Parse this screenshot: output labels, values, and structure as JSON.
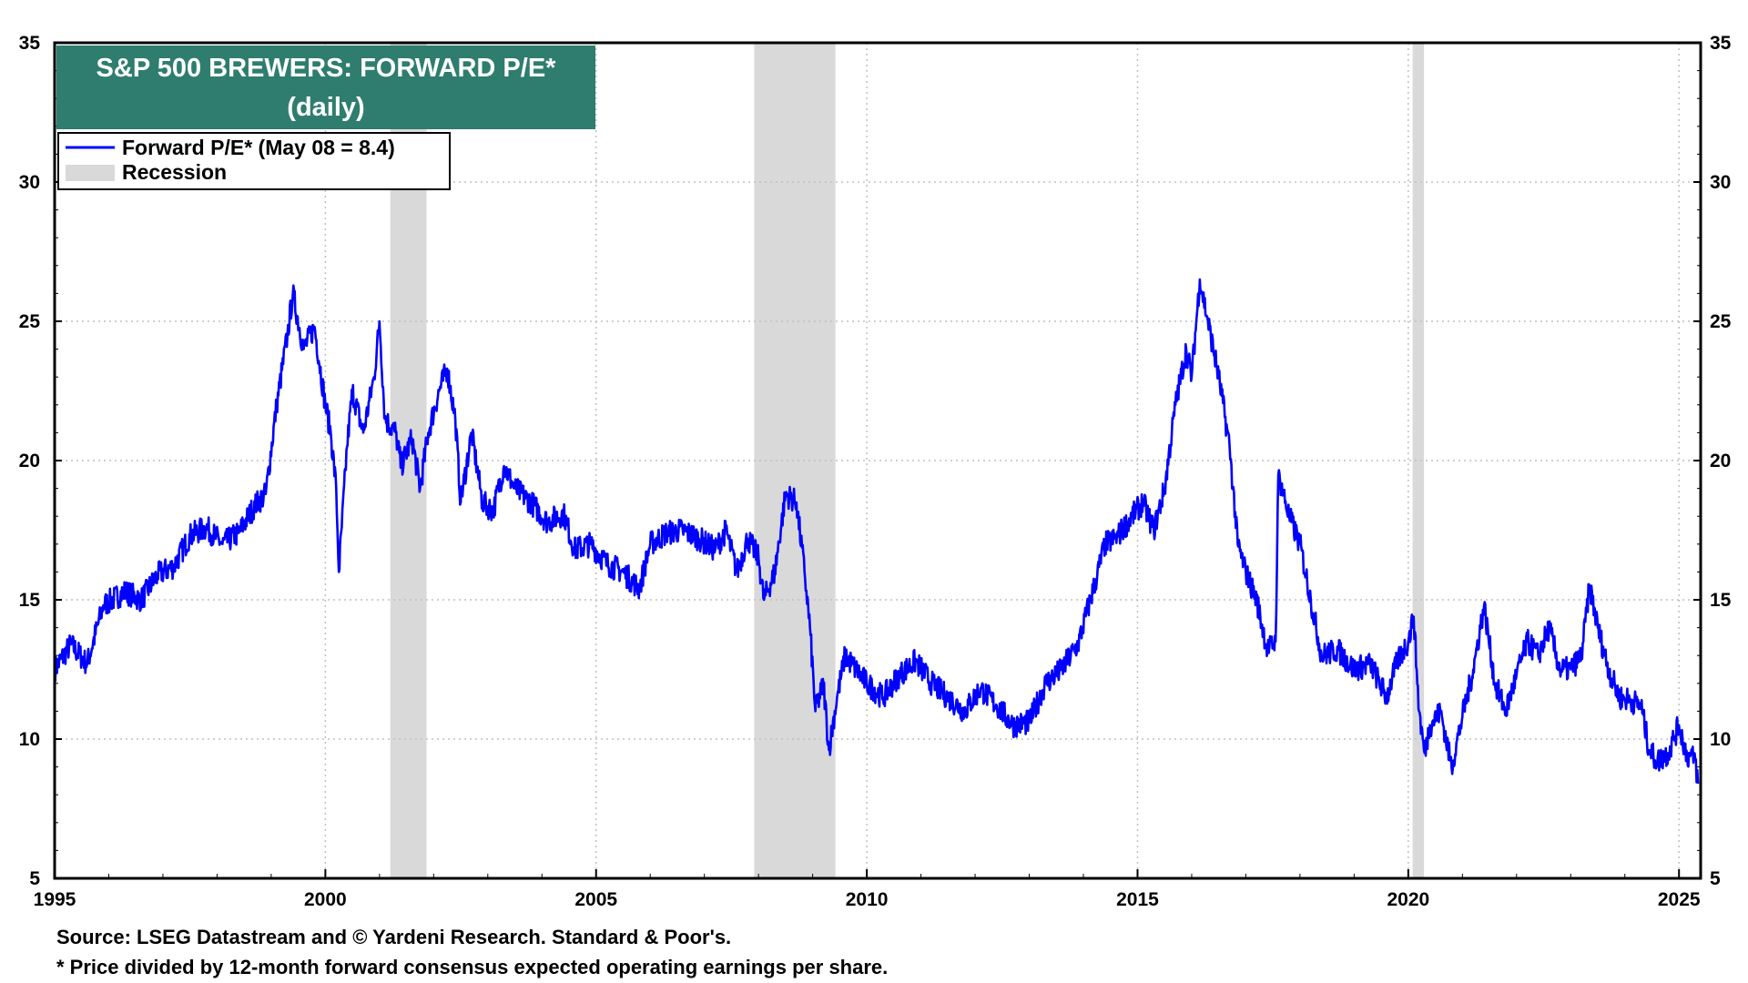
{
  "chart_data": {
    "type": "line",
    "title": "S&P 500 BREWERS: FORWARD P/E*",
    "subtitle": "(daily)",
    "xlim": [
      1995,
      2025.4
    ],
    "ylim": [
      5,
      35
    ],
    "x_ticks": [
      1995,
      2000,
      2005,
      2010,
      2015,
      2020,
      2025
    ],
    "y_ticks": [
      5,
      10,
      15,
      20,
      25,
      30,
      35
    ],
    "grid": true,
    "legend_position": "top-left",
    "legend": {
      "series_label": "Forward P/E* (May 08 = 8.4)",
      "recession_label": "Recession"
    },
    "recessions": [
      {
        "start": 2001.2,
        "end": 2001.87
      },
      {
        "start": 2007.92,
        "end": 2009.42
      },
      {
        "start": 2020.08,
        "end": 2020.29
      }
    ],
    "series": [
      {
        "name": "Forward P/E* (May 08 = 8.4)",
        "color": "#0000ff",
        "points": [
          [
            1995.0,
            12.5
          ],
          [
            1995.3,
            13.4
          ],
          [
            1995.6,
            12.7
          ],
          [
            1995.9,
            14.8
          ],
          [
            1996.3,
            15.3
          ],
          [
            1996.6,
            15.0
          ],
          [
            1996.9,
            15.9
          ],
          [
            1997.2,
            16.2
          ],
          [
            1997.5,
            17.3
          ],
          [
            1997.8,
            17.6
          ],
          [
            1998.1,
            17.0
          ],
          [
            1998.4,
            17.4
          ],
          [
            1998.7,
            18.4
          ],
          [
            1998.9,
            18.8
          ],
          [
            1999.1,
            22.0
          ],
          [
            1999.3,
            24.5
          ],
          [
            1999.4,
            26.0
          ],
          [
            1999.6,
            24.0
          ],
          [
            1999.8,
            24.8
          ],
          [
            2000.0,
            22.0
          ],
          [
            2000.1,
            21.0
          ],
          [
            2000.2,
            19.0
          ],
          [
            2000.25,
            16.0
          ],
          [
            2000.4,
            20.5
          ],
          [
            2000.5,
            22.5
          ],
          [
            2000.7,
            21.0
          ],
          [
            2000.9,
            23.0
          ],
          [
            2001.0,
            25.0
          ],
          [
            2001.1,
            21.5
          ],
          [
            2001.3,
            21.0
          ],
          [
            2001.4,
            19.8
          ],
          [
            2001.6,
            20.8
          ],
          [
            2001.75,
            19.0
          ],
          [
            2001.9,
            21.0
          ],
          [
            2002.1,
            22.5
          ],
          [
            2002.25,
            23.3
          ],
          [
            2002.4,
            21.5
          ],
          [
            2002.5,
            18.5
          ],
          [
            2002.7,
            21.0
          ],
          [
            2002.9,
            18.5
          ],
          [
            2003.1,
            18.2
          ],
          [
            2003.3,
            19.8
          ],
          [
            2003.5,
            19.0
          ],
          [
            2003.8,
            18.5
          ],
          [
            2004.1,
            17.8
          ],
          [
            2004.4,
            18.1
          ],
          [
            2004.6,
            16.8
          ],
          [
            2004.9,
            17.0
          ],
          [
            2005.2,
            16.3
          ],
          [
            2005.5,
            16.0
          ],
          [
            2005.8,
            15.4
          ],
          [
            2006.0,
            17.0
          ],
          [
            2006.3,
            17.4
          ],
          [
            2006.6,
            17.5
          ],
          [
            2006.9,
            17.2
          ],
          [
            2007.2,
            16.8
          ],
          [
            2007.4,
            17.5
          ],
          [
            2007.6,
            16.0
          ],
          [
            2007.8,
            17.2
          ],
          [
            2008.0,
            16.5
          ],
          [
            2008.1,
            15.0
          ],
          [
            2008.3,
            16.0
          ],
          [
            2008.5,
            18.8
          ],
          [
            2008.7,
            18.5
          ],
          [
            2008.85,
            16.0
          ],
          [
            2008.95,
            14.0
          ],
          [
            2009.05,
            11.0
          ],
          [
            2009.2,
            12.0
          ],
          [
            2009.3,
            9.6
          ],
          [
            2009.45,
            11.5
          ],
          [
            2009.6,
            13.0
          ],
          [
            2009.8,
            12.5
          ],
          [
            2010.0,
            12.0
          ],
          [
            2010.3,
            11.5
          ],
          [
            2010.6,
            12.3
          ],
          [
            2010.9,
            12.8
          ],
          [
            2011.2,
            12.0
          ],
          [
            2011.5,
            11.5
          ],
          [
            2011.8,
            11.0
          ],
          [
            2012.1,
            11.8
          ],
          [
            2012.4,
            11.2
          ],
          [
            2012.7,
            10.5
          ],
          [
            2013.0,
            10.6
          ],
          [
            2013.3,
            12.0
          ],
          [
            2013.6,
            12.5
          ],
          [
            2013.9,
            13.4
          ],
          [
            2014.2,
            15.5
          ],
          [
            2014.4,
            17.0
          ],
          [
            2014.6,
            17.2
          ],
          [
            2014.9,
            18.0
          ],
          [
            2015.1,
            18.5
          ],
          [
            2015.3,
            17.5
          ],
          [
            2015.5,
            19.0
          ],
          [
            2015.7,
            22.0
          ],
          [
            2015.9,
            24.0
          ],
          [
            2016.0,
            23.0
          ],
          [
            2016.15,
            26.5
          ],
          [
            2016.3,
            25.0
          ],
          [
            2016.5,
            23.0
          ],
          [
            2016.7,
            20.5
          ],
          [
            2016.85,
            17.0
          ],
          [
            2017.0,
            16.0
          ],
          [
            2017.2,
            15.0
          ],
          [
            2017.4,
            13.2
          ],
          [
            2017.55,
            13.5
          ],
          [
            2017.6,
            19.5
          ],
          [
            2017.8,
            18.0
          ],
          [
            2018.0,
            17.0
          ],
          [
            2018.2,
            15.0
          ],
          [
            2018.4,
            13.0
          ],
          [
            2018.7,
            13.2
          ],
          [
            2019.0,
            12.5
          ],
          [
            2019.3,
            12.7
          ],
          [
            2019.6,
            11.5
          ],
          [
            2019.8,
            12.8
          ],
          [
            2020.0,
            13.5
          ],
          [
            2020.1,
            14.4
          ],
          [
            2020.2,
            11.0
          ],
          [
            2020.3,
            9.5
          ],
          [
            2020.4,
            10.5
          ],
          [
            2020.6,
            11.0
          ],
          [
            2020.8,
            9.0
          ],
          [
            2021.0,
            10.8
          ],
          [
            2021.2,
            12.5
          ],
          [
            2021.4,
            14.8
          ],
          [
            2021.6,
            12.0
          ],
          [
            2021.8,
            11.0
          ],
          [
            2022.0,
            12.3
          ],
          [
            2022.2,
            13.5
          ],
          [
            2022.4,
            13.0
          ],
          [
            2022.6,
            14.0
          ],
          [
            2022.8,
            12.5
          ],
          [
            2023.0,
            12.5
          ],
          [
            2023.2,
            13.0
          ],
          [
            2023.35,
            15.5
          ],
          [
            2023.5,
            14.0
          ],
          [
            2023.7,
            12.5
          ],
          [
            2023.9,
            11.5
          ],
          [
            2024.1,
            11.4
          ],
          [
            2024.3,
            11.2
          ],
          [
            2024.45,
            9.6
          ],
          [
            2024.6,
            9.2
          ],
          [
            2024.8,
            9.5
          ],
          [
            2024.9,
            10.0
          ],
          [
            2025.0,
            10.5
          ],
          [
            2025.15,
            9.4
          ],
          [
            2025.3,
            9.3
          ],
          [
            2025.35,
            8.4
          ]
        ]
      }
    ]
  },
  "footnotes": {
    "source": "Source: LSEG Datastream and © Yardeni Research. Standard & Poor's.",
    "note": "* Price divided by 12-month forward consensus expected operating earnings per share."
  },
  "colors": {
    "title_bg": "#2e7d6e",
    "recession": "#d9d9d9",
    "line": "#0000ff",
    "grid": "#c0c0c0"
  }
}
